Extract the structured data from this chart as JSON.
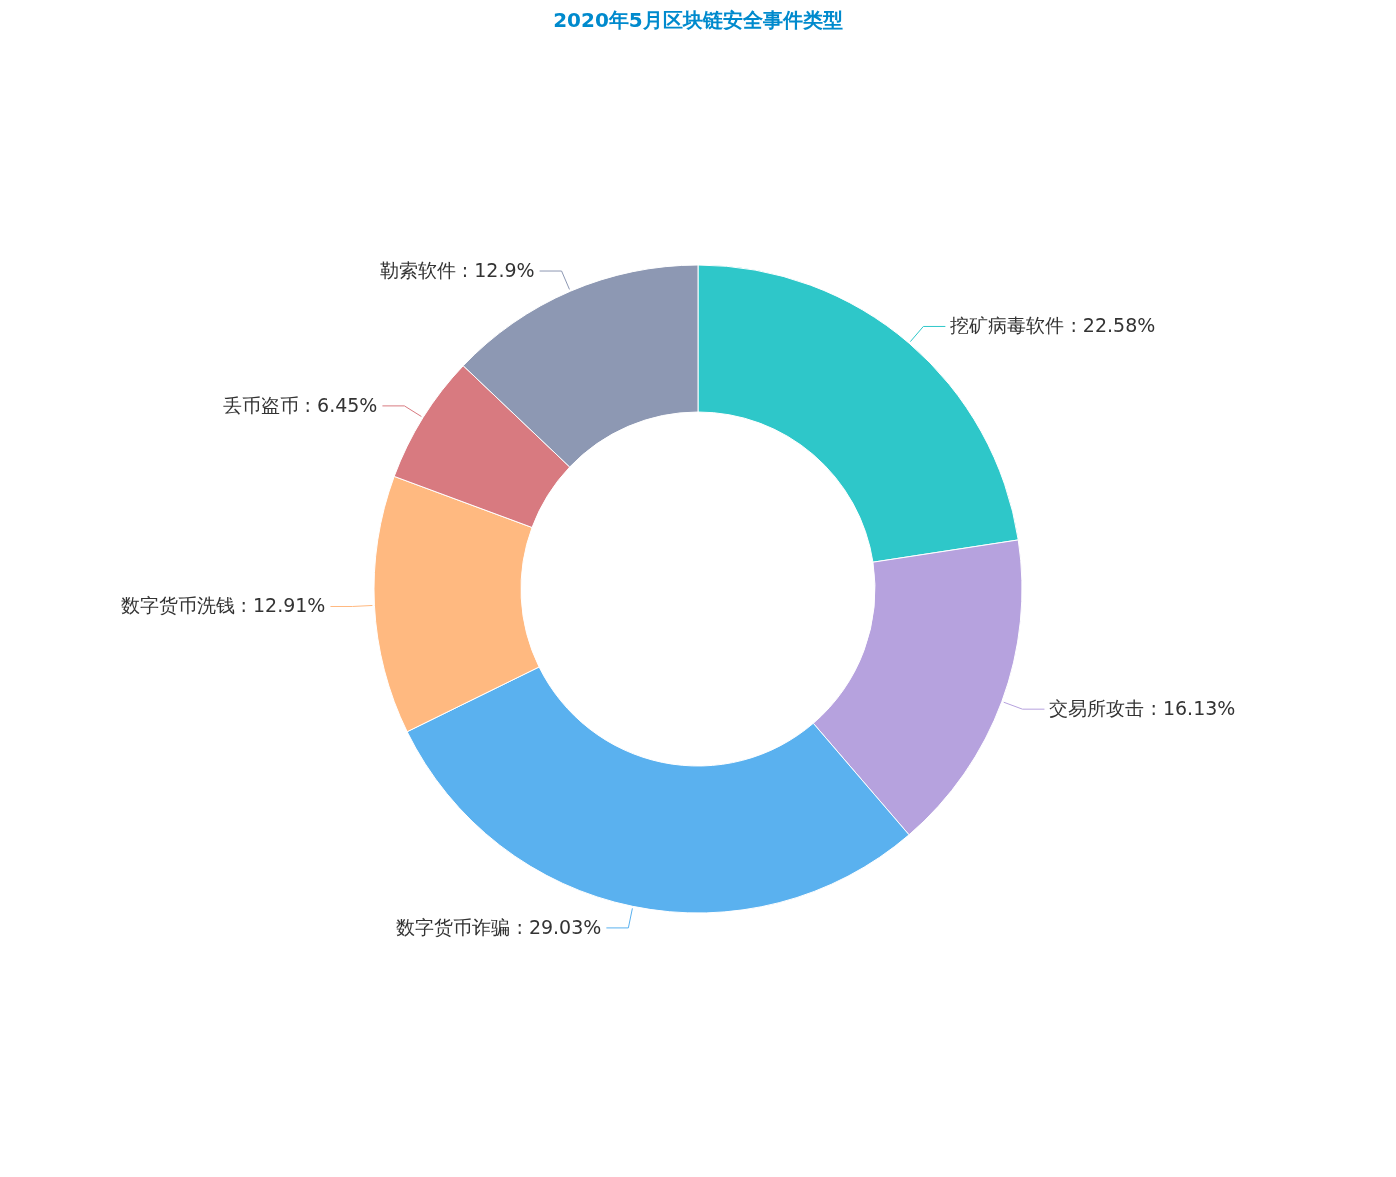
{
  "chart_data": {
    "type": "donut",
    "title": "2020年5月区块链安全事件类型",
    "categories": [
      "挖矿病毒软件",
      "交易所攻击",
      "数字货币诈骗",
      "数字货币洗钱",
      "丢币盗币",
      "勒索软件"
    ],
    "values": [
      22.58,
      16.13,
      29.03,
      12.91,
      6.45,
      12.9
    ],
    "value_labels": [
      "22.58%",
      "16.13%",
      "29.03%",
      "12.91%",
      "6.45%",
      "12.9%"
    ],
    "colors": [
      "#2ec7c9",
      "#b6a2de",
      "#5ab1ef",
      "#ffb980",
      "#d87a80",
      "#8d98b3"
    ]
  }
}
